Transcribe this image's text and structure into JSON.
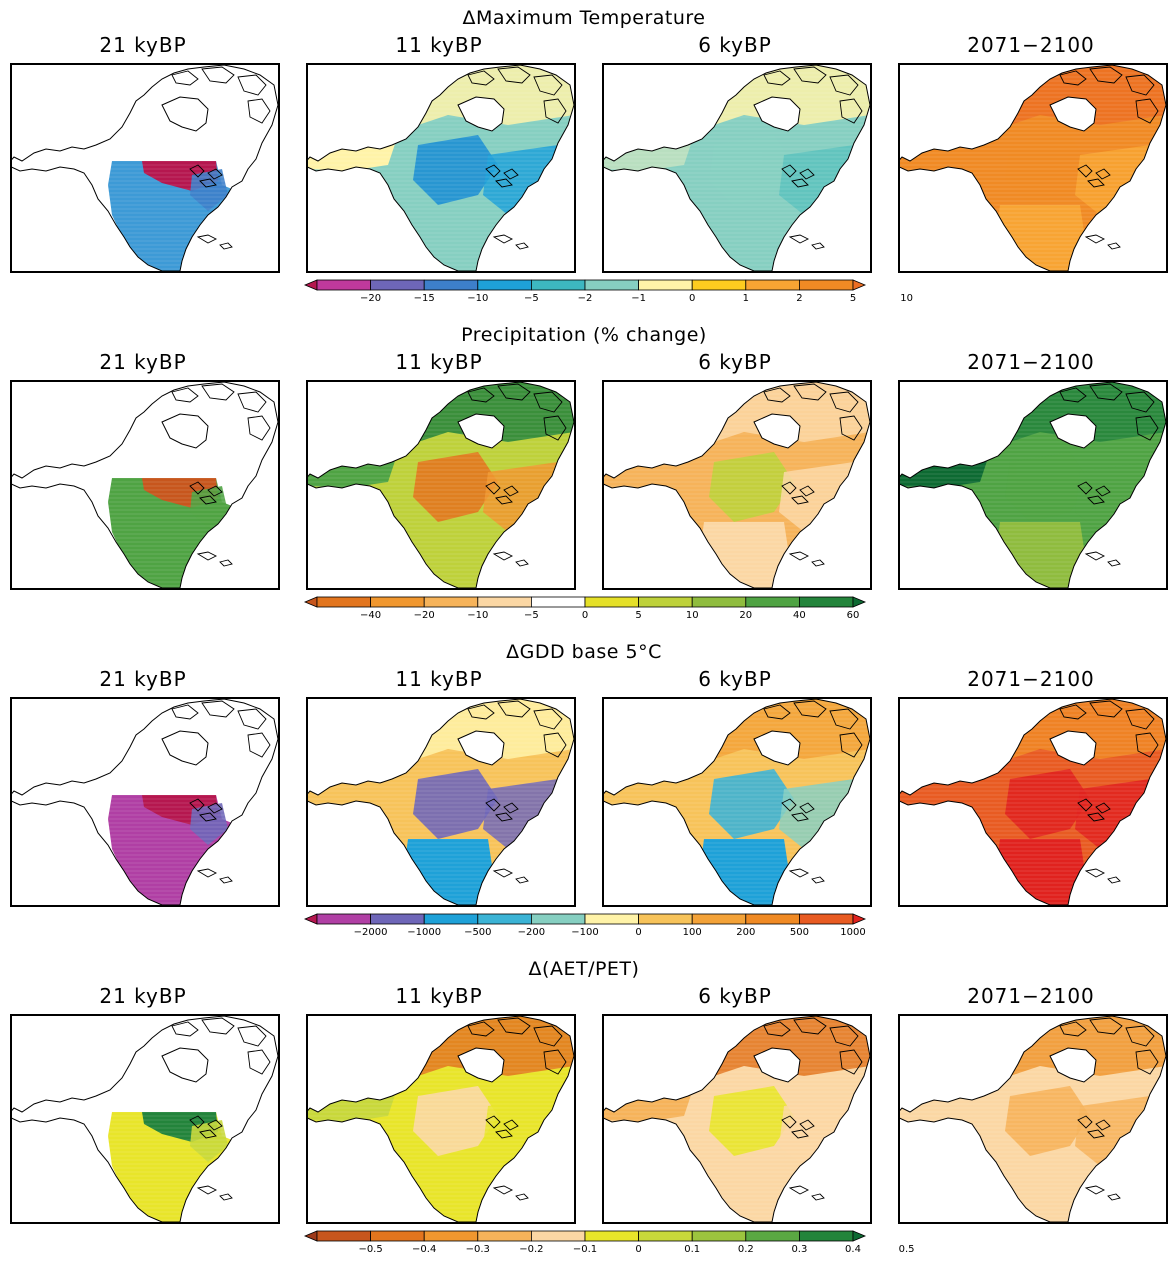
{
  "rows": [
    {
      "title": "ΔMaximum Temperature",
      "panels": [
        {
          "label": "21 kyBP",
          "field": "tmax_21k"
        },
        {
          "label": "11 kyBP",
          "field": "tmax_11k"
        },
        {
          "label": "6 kyBP",
          "field": "tmax_6k"
        },
        {
          "label": "2071−2100",
          "field": "tmax_future"
        }
      ],
      "colorbar": {
        "ticks": [
          "−20",
          "−15",
          "−10",
          "−5",
          "−2",
          "−1",
          "0",
          "1",
          "2",
          "5",
          "10"
        ],
        "colors": [
          "#b5174f",
          "#c0399c",
          "#6e66b8",
          "#3d7fca",
          "#1ea1d8",
          "#3db7c0",
          "#86cfc1",
          "#fff3a8",
          "#fdcc1f",
          "#f8a433",
          "#f08a24",
          "#ec6e22"
        ]
      }
    },
    {
      "title": "Precipitation (% change)",
      "panels": [
        {
          "label": "21 kyBP",
          "field": "precip_21k"
        },
        {
          "label": "11 kyBP",
          "field": "precip_11k"
        },
        {
          "label": "6 kyBP",
          "field": "precip_6k"
        },
        {
          "label": "2071−2100",
          "field": "precip_future"
        }
      ],
      "colorbar": {
        "ticks": [
          "−40",
          "−20",
          "−10",
          "−5",
          "0",
          "5",
          "10",
          "20",
          "40",
          "60"
        ],
        "colors": [
          "#c7561d",
          "#e2751e",
          "#f0972f",
          "#f6b35a",
          "#fbd7a4",
          "#ffffff",
          "#e5e028",
          "#bed13a",
          "#8fbc3e",
          "#4fa343",
          "#23843b",
          "#0d6a32"
        ]
      }
    },
    {
      "title": "ΔGDD base 5°C",
      "panels": [
        {
          "label": "21 kyBP",
          "field": "gdd_21k"
        },
        {
          "label": "11 kyBP",
          "field": "gdd_11k"
        },
        {
          "label": "6 kyBP",
          "field": "gdd_6k"
        },
        {
          "label": "2071−2100",
          "field": "gdd_future"
        }
      ],
      "colorbar": {
        "ticks": [
          "−2000",
          "−1000",
          "−500",
          "−200",
          "−100",
          "0",
          "100",
          "200",
          "500",
          "1000"
        ],
        "colors": [
          "#b5174f",
          "#b03fa4",
          "#6e66b8",
          "#1ea1d8",
          "#3bb3d5",
          "#86cfc1",
          "#fff3a8",
          "#f7c35a",
          "#f3a238",
          "#f08a24",
          "#e85b22",
          "#e0221e"
        ]
      }
    },
    {
      "title": "Δ(AET/PET)",
      "panels": [
        {
          "label": "21 kyBP",
          "field": "aet_21k"
        },
        {
          "label": "11 kyBP",
          "field": "aet_11k"
        },
        {
          "label": "6 kyBP",
          "field": "aet_6k"
        },
        {
          "label": "2071−2100",
          "field": "aet_future"
        }
      ],
      "colorbar": {
        "ticks": [
          "−0.5",
          "−0.4",
          "−0.3",
          "−0.2",
          "−0.1",
          "0",
          "0.1",
          "0.2",
          "0.3",
          "0.4",
          "0.5"
        ],
        "colors": [
          "#9e3a1a",
          "#c7561d",
          "#e2751e",
          "#f0972f",
          "#f6b35a",
          "#fbd7a4",
          "#e8e52a",
          "#c8d83a",
          "#9cc43e",
          "#5aa842",
          "#23843b",
          "#0d6a32"
        ]
      }
    }
  ],
  "fields": {
    "tmax_21k": {
      "base": "none",
      "south": "#3d9ad6",
      "core": "#b5174f",
      "alaska": "#f08a24",
      "east": "#3d7fca",
      "north": "none"
    },
    "tmax_11k": {
      "base": "#86cfc1",
      "south": "#86cfc1",
      "core": "#1e8fd3",
      "alaska": "#fff3a8",
      "east": "#1ea1d8",
      "north": "#fff3a8"
    },
    "tmax_6k": {
      "base": "#86cfc1",
      "south": "#86cfc1",
      "core": "#86cfc1",
      "alaska": "#b9dfc0",
      "east": "#5cc2bd",
      "north": "#fff3a8"
    },
    "tmax_future": {
      "base": "#f08a24",
      "south": "#f8a433",
      "core": "#f08a24",
      "alaska": "#f08a24",
      "east": "#f8a433",
      "north": "#ec6e22"
    },
    "precip_21k": {
      "base": "none",
      "south": "#4fa343",
      "core": "#c7561d",
      "alaska": "#f0972f",
      "east": "#4fa343",
      "north": "none"
    },
    "precip_11k": {
      "base": "#bed13a",
      "south": "#bed13a",
      "core": "#e2751e",
      "alaska": "#4fa343",
      "east": "#f0972f",
      "north": "#23843b"
    },
    "precip_6k": {
      "base": "#f6b35a",
      "south": "#fbd7a4",
      "core": "#bed13a",
      "alaska": "#f6b35a",
      "east": "#fbd7a4",
      "north": "#fbd7a4"
    },
    "precip_future": {
      "base": "#4fa343",
      "south": "#8fbc3e",
      "core": "#4fa343",
      "alaska": "#0d6a32",
      "east": "#4fa343",
      "north": "#23843b"
    },
    "gdd_21k": {
      "base": "none",
      "south": "#b03fa4",
      "core": "#b5174f",
      "alaska": "#f3a238",
      "east": "#6e66b8",
      "north": "none"
    },
    "gdd_11k": {
      "base": "#f7c35a",
      "south": "#1ea1d8",
      "core": "#6e66b8",
      "alaska": "#f7c35a",
      "east": "#6e66b8",
      "north": "#fff3a8"
    },
    "gdd_6k": {
      "base": "#f7c35a",
      "south": "#1ea1d8",
      "core": "#3bb3d5",
      "alaska": "#f7c35a",
      "east": "#86cfc1",
      "north": "#f3a238"
    },
    "gdd_future": {
      "base": "#e85b22",
      "south": "#e0221e",
      "core": "#e0221e",
      "alaska": "#e85b22",
      "east": "#e0221e",
      "north": "#f08a24"
    },
    "aet_21k": {
      "base": "none",
      "south": "#e8e52a",
      "core": "#23843b",
      "alaska": "#f0972f",
      "east": "#c8d83a",
      "north": "none"
    },
    "aet_11k": {
      "base": "#e8e52a",
      "south": "#e8e52a",
      "core": "#fbd7a4",
      "alaska": "#c8d83a",
      "east": "#e8e52a",
      "north": "#e2751e"
    },
    "aet_6k": {
      "base": "#fbd7a4",
      "south": "#fbd7a4",
      "core": "#e8e52a",
      "alaska": "#f6b35a",
      "east": "#fbd7a4",
      "north": "#e2751e"
    },
    "aet_future": {
      "base": "#fbd7a4",
      "south": "#fbd7a4",
      "core": "#f6b35a",
      "alaska": "#fbd7a4",
      "east": "#f6b35a",
      "north": "#f0972f"
    }
  }
}
